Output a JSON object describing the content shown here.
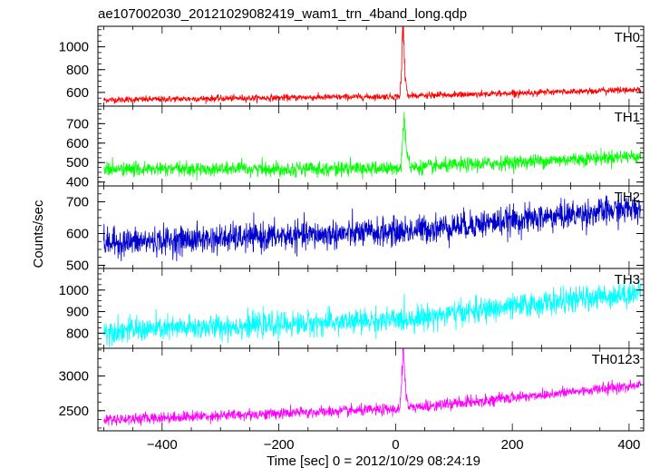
{
  "chart_data": {
    "type": "line",
    "title": "ae107002030_20121029082419_wam1_trn_4band_long.qdp",
    "xlabel": "Time [sec] 0 = 2012/10/29 08:24:19",
    "ylabel": "Counts/sec",
    "xlim": [
      -510,
      425
    ],
    "xticks": [
      -400,
      -200,
      0,
      200,
      400
    ],
    "xtick_labels": [
      "−400",
      "−200",
      "0",
      "200",
      "400"
    ],
    "panels": [
      {
        "name": "TH0",
        "color": "#ff0000",
        "ylim": [
          480,
          1180
        ],
        "yticks": [
          600,
          800,
          1000
        ],
        "baseline": {
          "x": [
            -500,
            0,
            420
          ],
          "y": [
            535,
            565,
            625
          ]
        },
        "noise": 14,
        "burst": {
          "x": [
            8,
            10,
            12,
            14,
            16,
            20
          ],
          "y": [
            620,
            760,
            1150,
            1100,
            760,
            600
          ]
        },
        "data_points": [
          {
            "x": -500,
            "y": 535
          },
          {
            "x": -200,
            "y": 550
          },
          {
            "x": 0,
            "y": 565
          },
          {
            "x": 12,
            "y": 1150
          },
          {
            "x": 200,
            "y": 595
          },
          {
            "x": 420,
            "y": 625
          }
        ]
      },
      {
        "name": "TH1",
        "color": "#00ff00",
        "ylim": [
          380,
          790
        ],
        "yticks": [
          400,
          500,
          600,
          700
        ],
        "baseline": {
          "x": [
            -500,
            0,
            420
          ],
          "y": [
            465,
            470,
            535
          ]
        },
        "noise": 18,
        "burst": {
          "x": [
            10,
            13,
            14,
            16,
            19,
            24
          ],
          "y": [
            530,
            650,
            760,
            680,
            560,
            500
          ]
        },
        "data_points": [
          {
            "x": -500,
            "y": 465
          },
          {
            "x": -200,
            "y": 468
          },
          {
            "x": 0,
            "y": 470
          },
          {
            "x": 14,
            "y": 760
          },
          {
            "x": 200,
            "y": 500
          },
          {
            "x": 420,
            "y": 535
          }
        ]
      },
      {
        "name": "TH2",
        "color": "#0000cc",
        "ylim": [
          490,
          750
        ],
        "yticks": [
          500,
          600,
          700
        ],
        "baseline": {
          "x": [
            -500,
            0,
            420
          ],
          "y": [
            570,
            605,
            680
          ]
        },
        "noise": 22,
        "burst": null,
        "data_points": [
          {
            "x": -500,
            "y": 570
          },
          {
            "x": -200,
            "y": 588
          },
          {
            "x": 0,
            "y": 605
          },
          {
            "x": 200,
            "y": 640
          },
          {
            "x": 420,
            "y": 680
          }
        ]
      },
      {
        "name": "TH3",
        "color": "#00ffff",
        "ylim": [
          730,
          1100
        ],
        "yticks": [
          800,
          900,
          1000
        ],
        "baseline": {
          "x": [
            -500,
            0,
            420
          ],
          "y": [
            810,
            860,
            990
          ]
        },
        "noise": 28,
        "burst": null,
        "data_points": [
          {
            "x": -500,
            "y": 810
          },
          {
            "x": -200,
            "y": 830
          },
          {
            "x": 0,
            "y": 860
          },
          {
            "x": 200,
            "y": 920
          },
          {
            "x": 420,
            "y": 990
          }
        ]
      },
      {
        "name": "TH0123",
        "color": "#ff00ff",
        "ylim": [
          2210,
          3400
        ],
        "yticks": [
          2500,
          3000
        ],
        "baseline": {
          "x": [
            -500,
            0,
            420
          ],
          "y": [
            2370,
            2520,
            2870
          ]
        },
        "noise": 40,
        "burst": {
          "x": [
            8,
            11,
            13,
            15,
            18,
            22
          ],
          "y": [
            2600,
            3000,
            3380,
            3150,
            2750,
            2560
          ]
        },
        "data_points": [
          {
            "x": -500,
            "y": 2370
          },
          {
            "x": -200,
            "y": 2440
          },
          {
            "x": 0,
            "y": 2520
          },
          {
            "x": 13,
            "y": 3380
          },
          {
            "x": 200,
            "y": 2680
          },
          {
            "x": 420,
            "y": 2870
          }
        ]
      }
    ]
  }
}
